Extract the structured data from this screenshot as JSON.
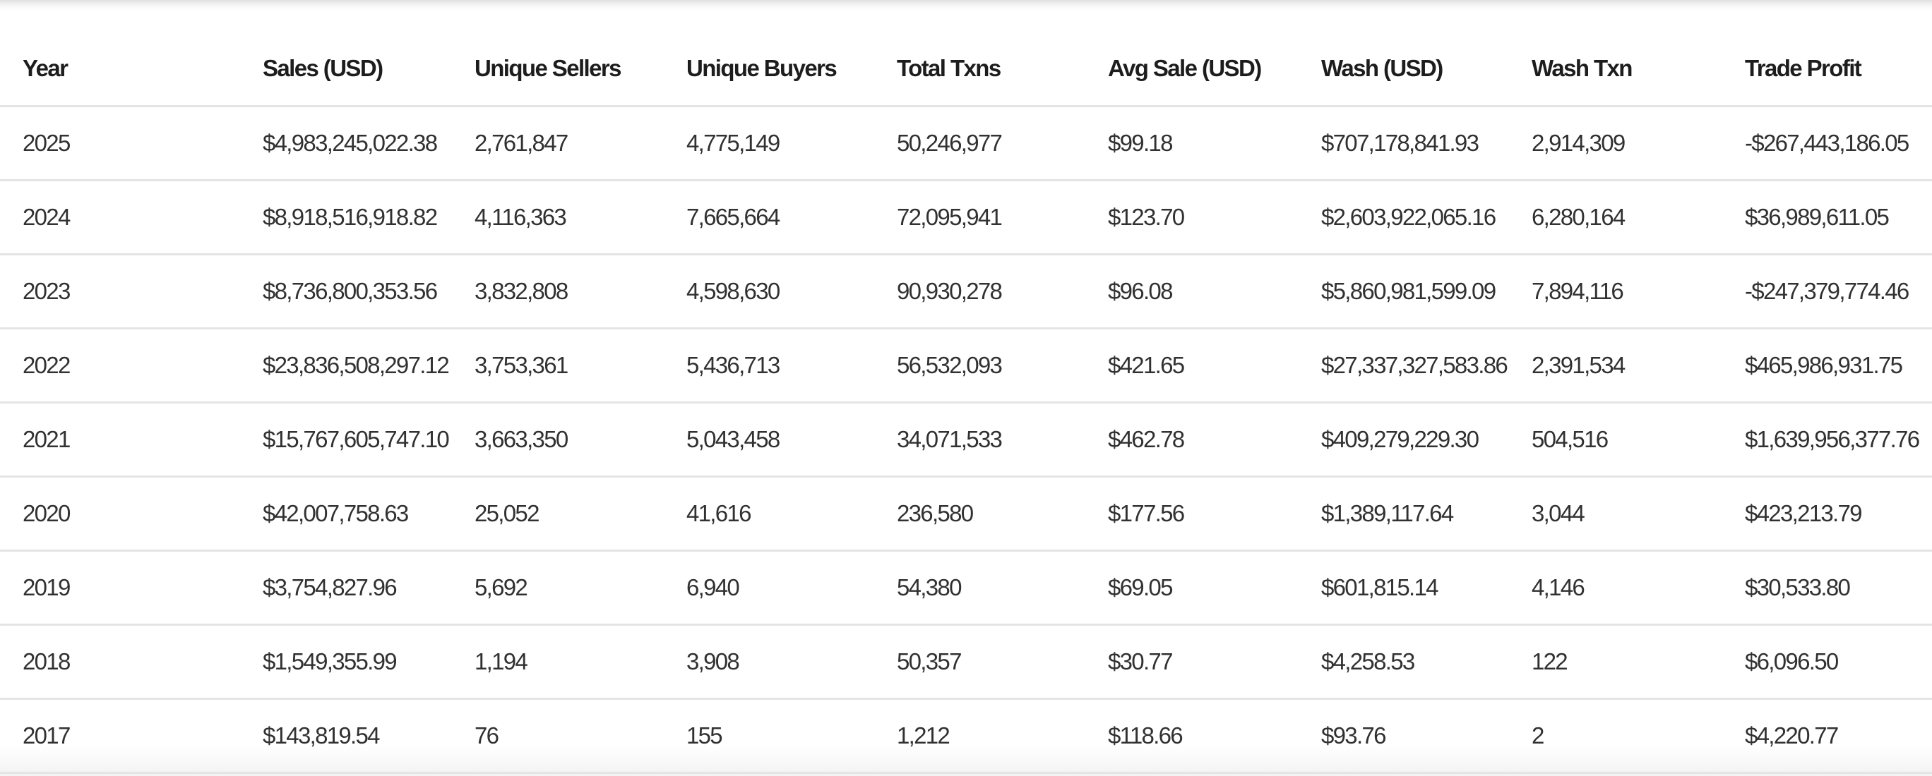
{
  "table": {
    "columns": [
      "Year",
      "Sales (USD)",
      "Unique Sellers",
      "Unique Buyers",
      "Total Txns",
      "Avg Sale (USD)",
      "Wash (USD)",
      "Wash Txn",
      "Trade Profit"
    ],
    "column_keys": [
      "year",
      "sales-usd",
      "unique-sellers",
      "unique-buyers",
      "total-txns",
      "avg-sale-usd",
      "wash-usd",
      "wash-txn",
      "trade-profit"
    ],
    "rows": [
      {
        "cells": [
          "2025",
          "$4,983,245,022.38",
          "2,761,847",
          "4,775,149",
          "50,246,977",
          "$99.18",
          "$707,178,841.93",
          "2,914,309",
          "-$267,443,186.05"
        ]
      },
      {
        "cells": [
          "2024",
          "$8,918,516,918.82",
          "4,116,363",
          "7,665,664",
          "72,095,941",
          "$123.70",
          "$2,603,922,065.16",
          "6,280,164",
          "$36,989,611.05"
        ]
      },
      {
        "cells": [
          "2023",
          "$8,736,800,353.56",
          "3,832,808",
          "4,598,630",
          "90,930,278",
          "$96.08",
          "$5,860,981,599.09",
          "7,894,116",
          "-$247,379,774.46"
        ]
      },
      {
        "cells": [
          "2022",
          "$23,836,508,297.12",
          "3,753,361",
          "5,436,713",
          "56,532,093",
          "$421.65",
          "$27,337,327,583.86",
          "2,391,534",
          "$465,986,931.75"
        ]
      },
      {
        "cells": [
          "2021",
          "$15,767,605,747.10",
          "3,663,350",
          "5,043,458",
          "34,071,533",
          "$462.78",
          "$409,279,229.30",
          "504,516",
          "$1,639,956,377.76"
        ]
      },
      {
        "cells": [
          "2020",
          "$42,007,758.63",
          "25,052",
          "41,616",
          "236,580",
          "$177.56",
          "$1,389,117.64",
          "3,044",
          "$423,213.79"
        ]
      },
      {
        "cells": [
          "2019",
          "$3,754,827.96",
          "5,692",
          "6,940",
          "54,380",
          "$69.05",
          "$601,815.14",
          "4,146",
          "$30,533.80"
        ]
      },
      {
        "cells": [
          "2018",
          "$1,549,355.99",
          "1,194",
          "3,908",
          "50,357",
          "$30.77",
          "$4,258.53",
          "122",
          "$6,096.50"
        ]
      },
      {
        "cells": [
          "2017",
          "$143,819.54",
          "76",
          "155",
          "1,212",
          "$118.66",
          "$93.76",
          "2",
          "$4,220.77"
        ]
      }
    ]
  },
  "theme": {
    "divider_color": "#e4e4e4",
    "header_text_color": "#1d1d1d",
    "body_text_color": "#313131",
    "background": "#ffffff"
  }
}
